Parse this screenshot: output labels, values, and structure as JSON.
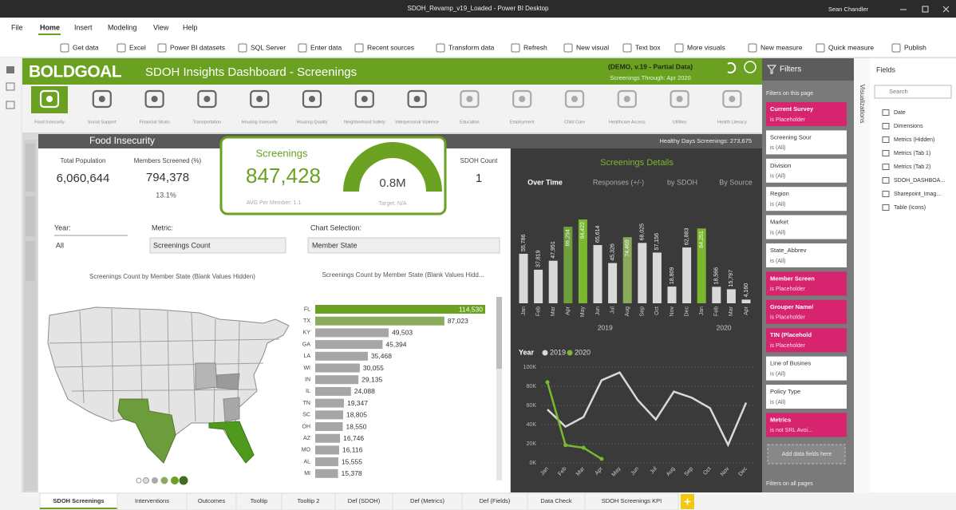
{
  "window": {
    "title": "SDOH_Revamp_v19_Loaded - Power BI Desktop",
    "user": "Sean Chandler"
  },
  "menu": [
    "File",
    "Home",
    "Insert",
    "Modeling",
    "View",
    "Help"
  ],
  "ribbon": [
    "Get data",
    "Excel",
    "Power BI datasets",
    "SQL Server",
    "Enter data",
    "Recent sources",
    "Transform data",
    "Refresh",
    "New visual",
    "Text box",
    "More visuals",
    "New measure",
    "Quick measure",
    "Publish"
  ],
  "dashboard": {
    "logo": "BOLDGOAL",
    "title": "SDOH Insights Dashboard - Screenings",
    "demo_note": "(DEMO, v.19 - Partial Data)",
    "through": "Screenings Through: Apr 2020",
    "categories": [
      "Food Insecurity",
      "Social Support",
      "Financial Strain",
      "Transportation",
      "Housing Insecurity",
      "Housing Quality",
      "Neighborhood Safety",
      "Interpersonal Violence",
      "Education",
      "Employment",
      "Child Care",
      "Healthcare Access",
      "Utilities",
      "Health Literacy"
    ],
    "section": "Food Insecurity",
    "healthy_days": "Healthy Days Screenings: 273,675",
    "kpis": {
      "total_population_label": "Total Population",
      "total_population": "6,060,644",
      "members_screened_label": "Members Screened (%)",
      "members_screened": "794,378",
      "members_screened_pct": "13.1%",
      "screenings_label": "Screenings",
      "screenings": "847,428",
      "avg_per_member": "AVG Per Member: 1.1",
      "gauge_value": "0.8M",
      "target": "Target: N/A",
      "sdoh_count_label": "SDOH Count",
      "sdoh_count": "1"
    },
    "slicers": [
      {
        "label": "Year:",
        "value": "All"
      },
      {
        "label": "Metric:",
        "value": "Screenings Count"
      },
      {
        "label": "Chart Selection:",
        "value": "Member State"
      }
    ],
    "map_title": "Screenings Count by Member State (Blank Values Hidden)",
    "bar_chart": {
      "type": "bar",
      "title": "Screenings Count by Member State (Blank Values Hidd...",
      "categories": [
        "FL",
        "TX",
        "KY",
        "GA",
        "LA",
        "WI",
        "IN",
        "IL",
        "TN",
        "SC",
        "OH",
        "AZ",
        "MO",
        "AL",
        "MI"
      ],
      "values": [
        114530,
        87023,
        49503,
        45394,
        35468,
        30055,
        29135,
        24088,
        19347,
        18805,
        18550,
        16746,
        16116,
        15555,
        15378
      ],
      "value_labels": [
        "114,530",
        "87,023",
        "49,503",
        "45,394",
        "35,468",
        "30,055",
        "29,135",
        "24,088",
        "19,347",
        "18,805",
        "18,550",
        "16,746",
        "16,116",
        "15,555",
        "15,378"
      ],
      "colors": [
        "#6aa121",
        "#8aab5a",
        "#a6a6a6",
        "#a6a6a6",
        "#a6a6a6",
        "#a6a6a6",
        "#a6a6a6",
        "#a6a6a6",
        "#a6a6a6",
        "#a6a6a6",
        "#a6a6a6",
        "#a6a6a6",
        "#a6a6a6",
        "#a6a6a6",
        "#a6a6a6"
      ]
    },
    "details": {
      "title": "Screenings Details",
      "tabs": [
        "Over Time",
        "Responses (+/-)",
        "by SDOH",
        "By Source"
      ]
    },
    "column_chart": {
      "type": "bar",
      "groups": [
        {
          "label": "2019",
          "categories": [
            "Jan",
            "Feb",
            "Mar",
            "Apr",
            "May",
            "Jun",
            "Jul",
            "Aug",
            "Sep",
            "Oct",
            "Nov",
            "Dec"
          ],
          "values": [
            55786,
            37819,
            47951,
            86294,
            94422,
            65614,
            45326,
            74469,
            68025,
            57156,
            18809,
            62883
          ],
          "value_labels": [
            "55,786",
            "37,819",
            "47,951",
            "86,294",
            "94,422",
            "65,614",
            "45,326",
            "74,469",
            "68,025",
            "57,156",
            "18,809",
            "62,883"
          ],
          "colors": [
            "#d9d9d9",
            "#d9d9d9",
            "#d9d9d9",
            "#6e9f3a",
            "#7cb82f",
            "#d9d9d9",
            "#d9d9d9",
            "#8aab5a",
            "#d9d9d9",
            "#d9d9d9",
            "#d9d9d9",
            "#d9d9d9"
          ]
        },
        {
          "label": "2020",
          "categories": [
            "Jan",
            "Feb",
            "Mar",
            "Apr"
          ],
          "values": [
            84251,
            18566,
            15797,
            4160
          ],
          "value_labels": [
            "84,251",
            "18,566",
            "15,797",
            "4,160"
          ],
          "colors": [
            "#7cb82f",
            "#d9d9d9",
            "#d9d9d9",
            "#d9d9d9"
          ]
        }
      ]
    },
    "line_chart": {
      "type": "line",
      "legend_title": "Year",
      "x": [
        "Jan",
        "Feb",
        "Mar",
        "Apr",
        "May",
        "Jun",
        "Jul",
        "Aug",
        "Sep",
        "Oct",
        "Nov",
        "Dec"
      ],
      "series": [
        {
          "name": "2019",
          "color": "#d9d9d9",
          "values": [
            55786,
            37819,
            47951,
            86294,
            94422,
            65614,
            45326,
            74469,
            68025,
            57156,
            18809,
            62883
          ]
        },
        {
          "name": "2020",
          "color": "#7cb82f",
          "values": [
            84251,
            18566,
            15797,
            4160,
            null,
            null,
            null,
            null,
            null,
            null,
            null,
            null
          ]
        }
      ],
      "ylim": [
        0,
        100000
      ],
      "yticks": [
        {
          "value": 0,
          "label": "0K"
        },
        {
          "value": 20000,
          "label": "20K"
        },
        {
          "value": 40000,
          "label": "40K"
        },
        {
          "value": 60000,
          "label": "60K"
        },
        {
          "value": 80000,
          "label": "80K"
        },
        {
          "value": 100000,
          "label": "100K"
        }
      ],
      "grid": true
    }
  },
  "filters": {
    "title": "Filters",
    "section": "Filters on this page",
    "items": [
      {
        "name": "Current Survey",
        "state": "is Placeholder",
        "active": true
      },
      {
        "name": "Screening Sour",
        "state": "is (All)",
        "active": false
      },
      {
        "name": "Division",
        "state": "is (All)",
        "active": false
      },
      {
        "name": "Region",
        "state": "is (All)",
        "active": false
      },
      {
        "name": "Market",
        "state": "is (All)",
        "active": false
      },
      {
        "name": "State_Abbrev",
        "state": "is (All)",
        "active": false
      },
      {
        "name": "Member Screen",
        "state": "is Placeholder",
        "active": true
      },
      {
        "name": "Grouper Name/",
        "state": "is Placeholder",
        "active": true
      },
      {
        "name": "TIN (Placehold",
        "state": "is Placeholder",
        "active": true
      },
      {
        "name": "Line of Busines",
        "state": "is (All)",
        "active": false
      },
      {
        "name": "Policy Type",
        "state": "is (All)",
        "active": false
      },
      {
        "name": "Metrics",
        "state": "is not SRL Avoi...",
        "active": true
      }
    ],
    "add": "Add data fields here",
    "all_pages": "Filters on all pages"
  },
  "visualizations": "Visualizations",
  "fields": {
    "title": "Fields",
    "search": "Search",
    "items": [
      "Date",
      "Dimensions",
      "Metrics (Hidden)",
      "Metrics (Tab 1)",
      "Metrics (Tab 2)",
      "SDOH_DASHBOA...",
      "Sharepoint_Imag...",
      "Table (Icons)"
    ]
  },
  "tabs": [
    "SDOH Screenings",
    "Interventions",
    "Outcomes",
    "Tooltip",
    "Tooltip 2",
    "Def (SDOH)",
    "Def (Metrics)",
    "Def (Fields)",
    "Data Check",
    "SDOH Screenings KPI"
  ]
}
